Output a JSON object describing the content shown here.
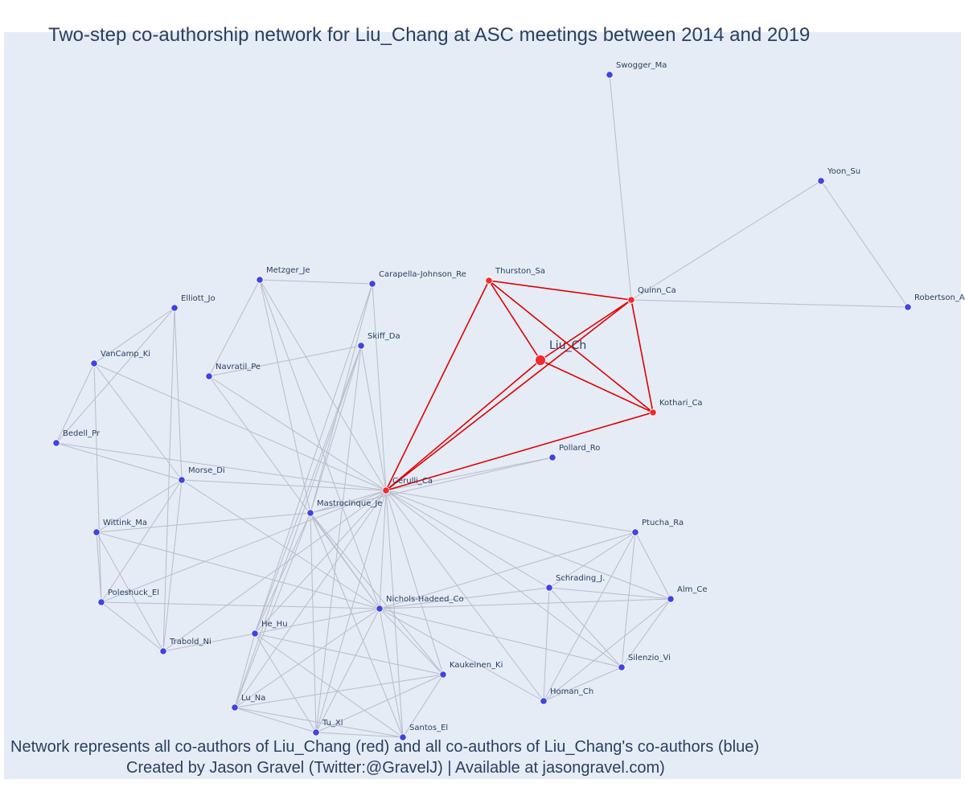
{
  "title": "Two-step co-authorship network for Liu_Chang at ASC meetings between 2014 and 2019",
  "caption_line1": "Network represents all co-authors of Liu_Chang (red) and all co-authors of Liu_Chang's co-authors (blue)",
  "caption_line2": "Created by Jason Gravel (Twitter:@GravelJ) | Available at jasongravel.com)",
  "colors": {
    "plot_bg": "#e5ecf6",
    "first_step": "#ef2b2b",
    "second_step": "#3d44e6",
    "edge_default": "#b8bcca",
    "edge_ego": "#e00000",
    "text": "#2a3f5f"
  },
  "network": {
    "ego": "Liu_Ch",
    "nodes": [
      {
        "id": "Liu_Ch",
        "label": "Liu_Ch",
        "group": "ego"
      },
      {
        "id": "Thurston_Sa",
        "label": "Thurston_Sa",
        "group": "coauthor"
      },
      {
        "id": "Quinn_Ca",
        "label": "Quinn_Ca",
        "group": "coauthor"
      },
      {
        "id": "Kothari_Ca",
        "label": "Kothari_Ca",
        "group": "coauthor"
      },
      {
        "id": "Cerulli_Ca",
        "label": "Cerulli_Ca",
        "group": "coauthor"
      },
      {
        "id": "Swogger_Ma",
        "label": "Swogger_Ma",
        "group": "second"
      },
      {
        "id": "Yoon_Su",
        "label": "Yoon_Su",
        "group": "second"
      },
      {
        "id": "Robertson_A",
        "label": "Robertson_A",
        "group": "second"
      },
      {
        "id": "Pollard_Ro",
        "label": "Pollard_Ro",
        "group": "second"
      },
      {
        "id": "Metzger_Je",
        "label": "Metzger_Je",
        "group": "second"
      },
      {
        "id": "Carapella-Johnson_Re",
        "label": "Carapella-Johnson_Re",
        "group": "second"
      },
      {
        "id": "Elliott_Jo",
        "label": "Elliott_Jo",
        "group": "second"
      },
      {
        "id": "Skiff_Da",
        "label": "Skiff_Da",
        "group": "second"
      },
      {
        "id": "VanCamp_Ki",
        "label": "VanCamp_Ki",
        "group": "second"
      },
      {
        "id": "Navratil_Pe",
        "label": "Navratil_Pe",
        "group": "second"
      },
      {
        "id": "Bedell_Pr",
        "label": "Bedell_Pr",
        "group": "second"
      },
      {
        "id": "Morse_Di",
        "label": "Morse_Di",
        "group": "second"
      },
      {
        "id": "Mastrocinque_Je",
        "label": "Mastrocinque_Je",
        "group": "second"
      },
      {
        "id": "Wittink_Ma",
        "label": "Wittink_Ma",
        "group": "second"
      },
      {
        "id": "Ptucha_Ra",
        "label": "Ptucha_Ra",
        "group": "second"
      },
      {
        "id": "Schrading_J.",
        "label": "Schrading_J.",
        "group": "second"
      },
      {
        "id": "Alm_Ce",
        "label": "Alm_Ce",
        "group": "second"
      },
      {
        "id": "Poleshuck_El",
        "label": "Poleshuck_El",
        "group": "second"
      },
      {
        "id": "Nichols-Hadeed_Co",
        "label": "Nichols-Hadeed_Co",
        "group": "second"
      },
      {
        "id": "He_Hu",
        "label": "He_Hu",
        "group": "second"
      },
      {
        "id": "Trabold_Ni",
        "label": "Trabold_Ni",
        "group": "second"
      },
      {
        "id": "Silenzio_Vi",
        "label": "Silenzio_Vi",
        "group": "second"
      },
      {
        "id": "Kaukeinen_Ki",
        "label": "Kaukeinen_Ki",
        "group": "second"
      },
      {
        "id": "Homan_Ch",
        "label": "Homan_Ch",
        "group": "second"
      },
      {
        "id": "Lu_Na",
        "label": "Lu_Na",
        "group": "second"
      },
      {
        "id": "Tu_Xi",
        "label": "Tu_Xi",
        "group": "second"
      },
      {
        "id": "Santos_El",
        "label": "Santos_El",
        "group": "second"
      }
    ],
    "edges": [
      [
        "Liu_Ch",
        "Thurston_Sa"
      ],
      [
        "Liu_Ch",
        "Quinn_Ca"
      ],
      [
        "Liu_Ch",
        "Kothari_Ca"
      ],
      [
        "Liu_Ch",
        "Cerulli_Ca"
      ],
      [
        "Thurston_Sa",
        "Quinn_Ca"
      ],
      [
        "Thurston_Sa",
        "Kothari_Ca"
      ],
      [
        "Thurston_Sa",
        "Cerulli_Ca"
      ],
      [
        "Quinn_Ca",
        "Kothari_Ca"
      ],
      [
        "Quinn_Ca",
        "Cerulli_Ca"
      ],
      [
        "Kothari_Ca",
        "Cerulli_Ca"
      ],
      [
        "Quinn_Ca",
        "Swogger_Ma"
      ],
      [
        "Quinn_Ca",
        "Yoon_Su"
      ],
      [
        "Quinn_Ca",
        "Robertson_A"
      ],
      [
        "Yoon_Su",
        "Robertson_A"
      ],
      [
        "Cerulli_Ca",
        "Pollard_Ro"
      ],
      [
        "Mastrocinque_Je",
        "Pollard_Ro"
      ],
      [
        "Metzger_Je",
        "Carapella-Johnson_Re"
      ],
      [
        "Metzger_Je",
        "Navratil_Pe"
      ],
      [
        "Metzger_Je",
        "Cerulli_Ca"
      ],
      [
        "Metzger_Je",
        "Mastrocinque_Je"
      ],
      [
        "Metzger_Je",
        "Nichols-Hadeed_Co"
      ],
      [
        "Carapella-Johnson_Re",
        "Cerulli_Ca"
      ],
      [
        "Carapella-Johnson_Re",
        "Mastrocinque_Je"
      ],
      [
        "Carapella-Johnson_Re",
        "He_Hu"
      ],
      [
        "Skiff_Da",
        "Navratil_Pe"
      ],
      [
        "Skiff_Da",
        "Cerulli_Ca"
      ],
      [
        "Skiff_Da",
        "Mastrocinque_Je"
      ],
      [
        "Skiff_Da",
        "He_Hu"
      ],
      [
        "Skiff_Da",
        "Lu_Na"
      ],
      [
        "Skiff_Da",
        "Tu_Xi"
      ],
      [
        "Navratil_Pe",
        "Cerulli_Ca"
      ],
      [
        "Navratil_Pe",
        "Nichols-Hadeed_Co"
      ],
      [
        "Elliott_Jo",
        "VanCamp_Ki"
      ],
      [
        "Elliott_Jo",
        "Bedell_Pr"
      ],
      [
        "Elliott_Jo",
        "Morse_Di"
      ],
      [
        "Elliott_Jo",
        "Trabold_Ni"
      ],
      [
        "VanCamp_Ki",
        "Bedell_Pr"
      ],
      [
        "VanCamp_Ki",
        "Morse_Di"
      ],
      [
        "VanCamp_Ki",
        "Cerulli_Ca"
      ],
      [
        "VanCamp_Ki",
        "Poleshuck_El"
      ],
      [
        "Bedell_Pr",
        "Morse_Di"
      ],
      [
        "Bedell_Pr",
        "Cerulli_Ca"
      ],
      [
        "Morse_Di",
        "Cerulli_Ca"
      ],
      [
        "Morse_Di",
        "Wittink_Ma"
      ],
      [
        "Morse_Di",
        "Poleshuck_El"
      ],
      [
        "Morse_Di",
        "Trabold_Ni"
      ],
      [
        "Morse_Di",
        "Nichols-Hadeed_Co"
      ],
      [
        "Wittink_Ma",
        "Mastrocinque_Je"
      ],
      [
        "Wittink_Ma",
        "Poleshuck_El"
      ],
      [
        "Wittink_Ma",
        "Trabold_Ni"
      ],
      [
        "Wittink_Ma",
        "Nichols-Hadeed_Co"
      ],
      [
        "Poleshuck_El",
        "Trabold_Ni"
      ],
      [
        "Poleshuck_El",
        "Nichols-Hadeed_Co"
      ],
      [
        "Poleshuck_El",
        "Cerulli_Ca"
      ],
      [
        "Trabold_Ni",
        "He_Hu"
      ],
      [
        "Trabold_Ni",
        "Cerulli_Ca"
      ],
      [
        "Mastrocinque_Je",
        "Cerulli_Ca"
      ],
      [
        "Mastrocinque_Je",
        "Nichols-Hadeed_Co"
      ],
      [
        "Mastrocinque_Je",
        "He_Hu"
      ],
      [
        "Mastrocinque_Je",
        "Lu_Na"
      ],
      [
        "Mastrocinque_Je",
        "Tu_Xi"
      ],
      [
        "Mastrocinque_Je",
        "Santos_El"
      ],
      [
        "Mastrocinque_Je",
        "Kaukeinen_Ki"
      ],
      [
        "Cerulli_Ca",
        "Nichols-Hadeed_Co"
      ],
      [
        "Cerulli_Ca",
        "He_Hu"
      ],
      [
        "Cerulli_Ca",
        "Lu_Na"
      ],
      [
        "Cerulli_Ca",
        "Tu_Xi"
      ],
      [
        "Cerulli_Ca",
        "Santos_El"
      ],
      [
        "Cerulli_Ca",
        "Kaukeinen_Ki"
      ],
      [
        "Cerulli_Ca",
        "Homan_Ch"
      ],
      [
        "Cerulli_Ca",
        "Ptucha_Ra"
      ],
      [
        "Cerulli_Ca",
        "Schrading_J."
      ],
      [
        "Cerulli_Ca",
        "Alm_Ce"
      ],
      [
        "Cerulli_Ca",
        "Silenzio_Vi"
      ],
      [
        "Nichols-Hadeed_Co",
        "He_Hu"
      ],
      [
        "Nichols-Hadeed_Co",
        "Lu_Na"
      ],
      [
        "Nichols-Hadeed_Co",
        "Tu_Xi"
      ],
      [
        "Nichols-Hadeed_Co",
        "Santos_El"
      ],
      [
        "Nichols-Hadeed_Co",
        "Kaukeinen_Ki"
      ],
      [
        "Nichols-Hadeed_Co",
        "Schrading_J."
      ],
      [
        "Nichols-Hadeed_Co",
        "Alm_Ce"
      ],
      [
        "Nichols-Hadeed_Co",
        "Ptucha_Ra"
      ],
      [
        "Nichols-Hadeed_Co",
        "Silenzio_Vi"
      ],
      [
        "Nichols-Hadeed_Co",
        "Homan_Ch"
      ],
      [
        "He_Hu",
        "Lu_Na"
      ],
      [
        "He_Hu",
        "Tu_Xi"
      ],
      [
        "He_Hu",
        "Santos_El"
      ],
      [
        "He_Hu",
        "Kaukeinen_Ki"
      ],
      [
        "Lu_Na",
        "Tu_Xi"
      ],
      [
        "Lu_Na",
        "Santos_El"
      ],
      [
        "Lu_Na",
        "Kaukeinen_Ki"
      ],
      [
        "Tu_Xi",
        "Santos_El"
      ],
      [
        "Tu_Xi",
        "Kaukeinen_Ki"
      ],
      [
        "Kaukeinen_Ki",
        "Santos_El"
      ],
      [
        "Ptucha_Ra",
        "Schrading_J."
      ],
      [
        "Ptucha_Ra",
        "Alm_Ce"
      ],
      [
        "Ptucha_Ra",
        "Silenzio_Vi"
      ],
      [
        "Ptucha_Ra",
        "Homan_Ch"
      ],
      [
        "Schrading_J.",
        "Alm_Ce"
      ],
      [
        "Schrading_J.",
        "Silenzio_Vi"
      ],
      [
        "Schrading_J.",
        "Homan_Ch"
      ],
      [
        "Alm_Ce",
        "Silenzio_Vi"
      ],
      [
        "Alm_Ce",
        "Homan_Ch"
      ],
      [
        "Silenzio_Vi",
        "Homan_Ch"
      ]
    ]
  }
}
